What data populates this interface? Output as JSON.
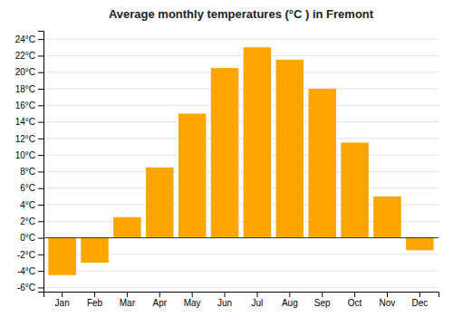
{
  "chart_data": {
    "type": "bar",
    "title": "Average monthly temperatures (°C ) in Fremont",
    "categories": [
      "Jan",
      "Feb",
      "Mar",
      "Apr",
      "May",
      "Jun",
      "Jul",
      "Aug",
      "Sep",
      "Oct",
      "Nov",
      "Dec"
    ],
    "values": [
      -4.5,
      -3.0,
      2.5,
      8.5,
      15.0,
      20.5,
      23.0,
      21.5,
      18.0,
      11.5,
      5.0,
      -1.5
    ],
    "color": "#FFA500",
    "ylim": [
      -6.5,
      25
    ],
    "yticks": [
      {
        "value": -6,
        "label": "-6°C"
      },
      {
        "value": -4,
        "label": "-4°C"
      },
      {
        "value": -2,
        "label": "-2°C"
      },
      {
        "value": 0,
        "label": "0°C"
      },
      {
        "value": 2,
        "label": "2°C"
      },
      {
        "value": 4,
        "label": "4°C"
      },
      {
        "value": 6,
        "label": "6°C"
      },
      {
        "value": 8,
        "label": "8°C"
      },
      {
        "value": 10,
        "label": "10°C"
      },
      {
        "value": 12,
        "label": "12°C"
      },
      {
        "value": 14,
        "label": "14°C"
      },
      {
        "value": 16,
        "label": "16°C"
      },
      {
        "value": 18,
        "label": "18°C"
      },
      {
        "value": 20,
        "label": "20°C"
      },
      {
        "value": 22,
        "label": "22°C"
      },
      {
        "value": 24,
        "label": "24°C"
      }
    ],
    "grid": true
  }
}
